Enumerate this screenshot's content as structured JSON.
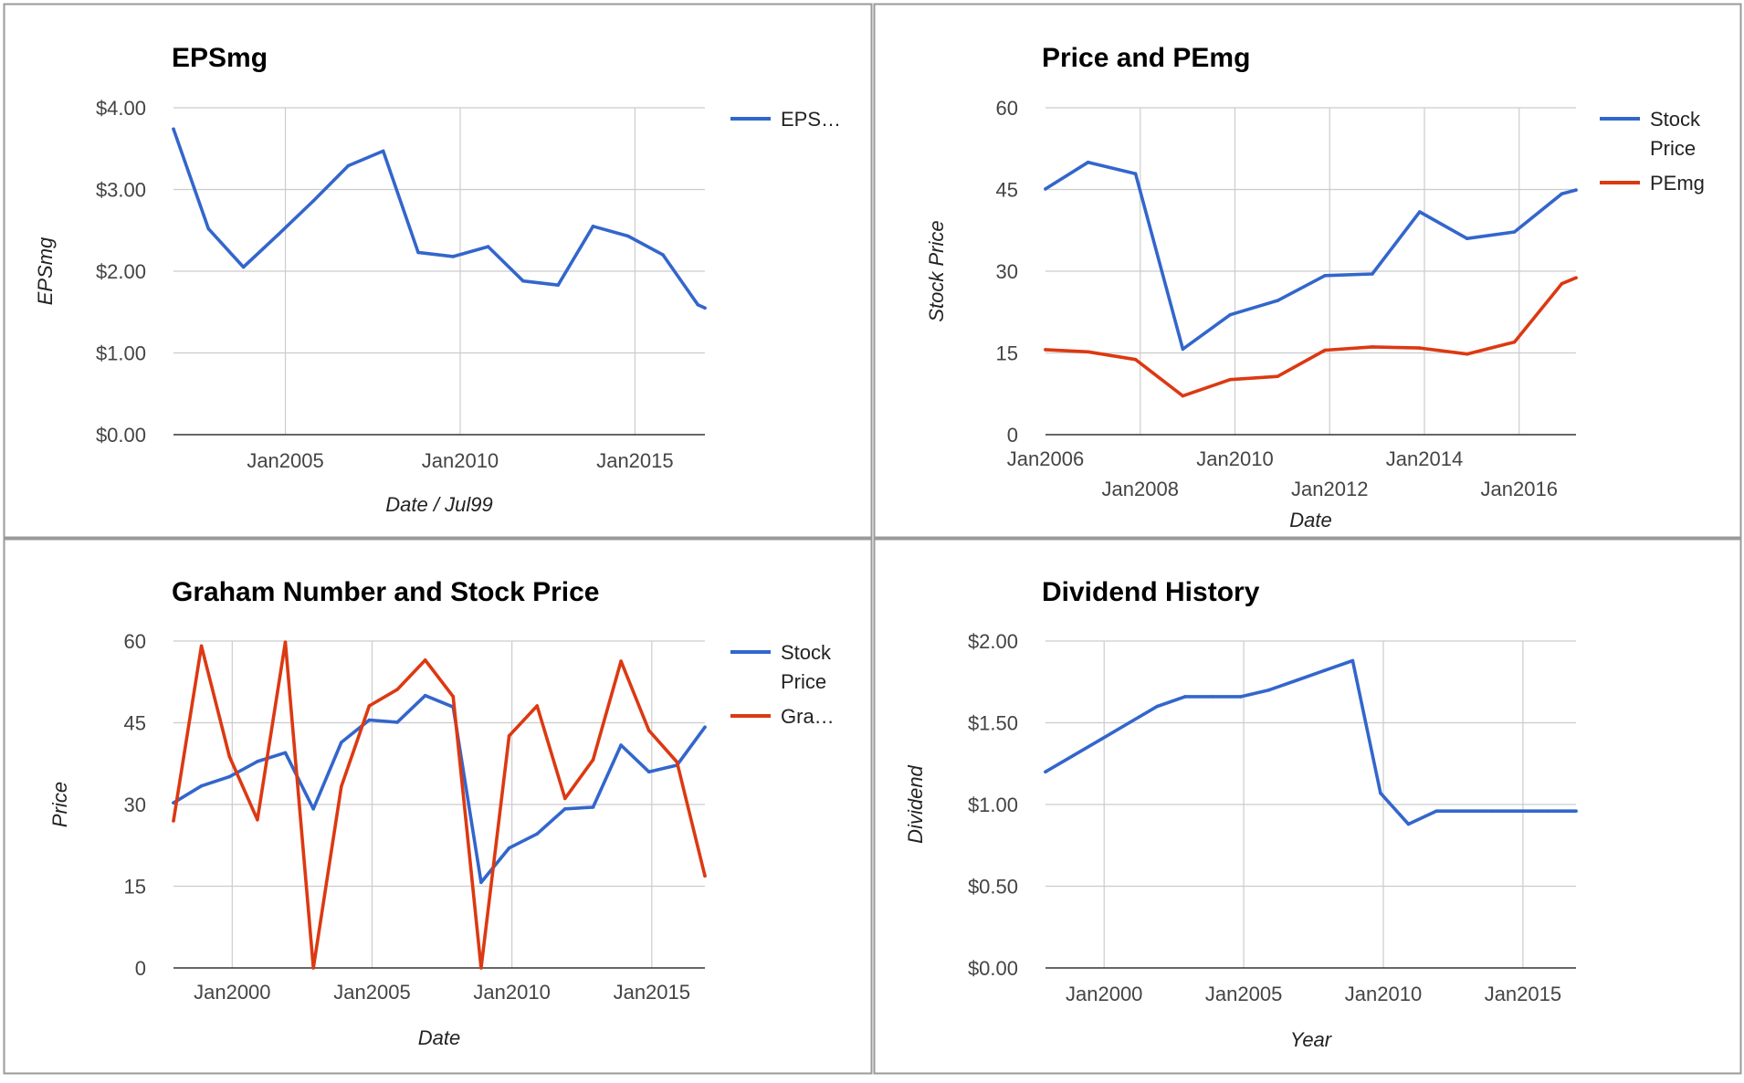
{
  "chart_data": [
    {
      "type": "line",
      "title": "EPSmg",
      "xlabel": "Date / Jul99",
      "ylabel": "EPSmg",
      "ylim": [
        0,
        4
      ],
      "y_ticks": [
        "$0.00",
        "$1.00",
        "$2.00",
        "$3.00",
        "$4.00"
      ],
      "x_ticks": [
        {
          "label": "Jan2005",
          "x": 2005.0
        },
        {
          "label": "Jan2010",
          "x": 2010.0
        },
        {
          "label": "Jan2015",
          "x": 2015.0
        }
      ],
      "xlim": [
        2001.8,
        2017.0
      ],
      "grid": true,
      "legend": "right",
      "series": [
        {
          "name": "EPS…",
          "color": "#3366cc",
          "x": [
            2001.8,
            2002.8,
            2003.8,
            2004.8,
            2005.8,
            2006.8,
            2007.8,
            2008.8,
            2009.8,
            2010.8,
            2011.8,
            2012.8,
            2013.8,
            2014.8,
            2015.8,
            2016.8,
            2017.0
          ],
          "y": [
            3.74,
            2.52,
            2.05,
            2.45,
            2.86,
            3.29,
            3.47,
            2.23,
            2.18,
            2.3,
            1.88,
            1.83,
            2.55,
            2.43,
            2.2,
            1.59,
            1.55
          ]
        }
      ]
    },
    {
      "type": "line",
      "title": "Price and PEmg",
      "xlabel": "Date",
      "ylabel": "Stock Price",
      "ylim": [
        0,
        60
      ],
      "y_ticks": [
        "0",
        "15",
        "30",
        "45",
        "60"
      ],
      "x_ticks": [
        {
          "label": "Jan2006",
          "x": 2006.0
        },
        {
          "label": "Jan2008",
          "x": 2008.0
        },
        {
          "label": "Jan2010",
          "x": 2010.0
        },
        {
          "label": "Jan2012",
          "x": 2012.0
        },
        {
          "label": "Jan2014",
          "x": 2014.0
        },
        {
          "label": "Jan2016",
          "x": 2016.0
        }
      ],
      "xlim": [
        2006.0,
        2017.2
      ],
      "grid": true,
      "legend": "right",
      "series": [
        {
          "name": "Stock Price",
          "color": "#3366cc",
          "x": [
            2006.0,
            2006.9,
            2007.9,
            2008.9,
            2009.9,
            2010.9,
            2011.9,
            2012.9,
            2013.9,
            2014.9,
            2015.9,
            2016.9,
            2017.2
          ],
          "y": [
            45.1,
            50.0,
            47.9,
            15.7,
            22.0,
            24.6,
            29.2,
            29.5,
            40.9,
            36.0,
            37.2,
            44.2,
            44.9
          ]
        },
        {
          "name": "PEmg",
          "color": "#dc3912",
          "x": [
            2006.0,
            2006.9,
            2007.9,
            2008.9,
            2009.9,
            2010.9,
            2011.9,
            2012.9,
            2013.9,
            2014.9,
            2015.9,
            2016.9,
            2017.2
          ],
          "y": [
            15.6,
            15.2,
            13.8,
            7.1,
            10.1,
            10.7,
            15.5,
            16.1,
            15.9,
            14.8,
            17.0,
            27.7,
            28.8
          ]
        }
      ]
    },
    {
      "type": "line",
      "title": "Graham Number and Stock Price",
      "xlabel": "Date",
      "ylabel": "Price",
      "ylim": [
        0,
        60
      ],
      "y_ticks": [
        "0",
        "15",
        "30",
        "45",
        "60"
      ],
      "x_ticks": [
        {
          "label": "Jan2000",
          "x": 2000.0
        },
        {
          "label": "Jan2005",
          "x": 2005.0
        },
        {
          "label": "Jan2010",
          "x": 2010.0
        },
        {
          "label": "Jan2015",
          "x": 2015.0
        }
      ],
      "xlim": [
        1997.9,
        2016.9
      ],
      "grid": true,
      "legend": "right",
      "series": [
        {
          "name": "Stock Price",
          "color": "#3366cc",
          "x": [
            1997.9,
            1998.9,
            1999.9,
            2000.9,
            2001.9,
            2002.9,
            2003.9,
            2004.9,
            2005.9,
            2006.9,
            2007.9,
            2008.9,
            2009.9,
            2010.9,
            2011.9,
            2012.9,
            2013.9,
            2014.9,
            2015.9,
            2016.9
          ],
          "y": [
            30.3,
            33.4,
            35.1,
            37.9,
            39.5,
            29.2,
            41.4,
            45.5,
            45.1,
            50.0,
            47.9,
            15.7,
            22.0,
            24.6,
            29.2,
            29.5,
            40.9,
            36.0,
            37.2,
            44.2
          ]
        },
        {
          "name": "Gra…",
          "color": "#dc3912",
          "x": [
            1997.9,
            1998.9,
            1999.9,
            2000.9,
            2001.9,
            2002.9,
            2003.9,
            2004.9,
            2005.9,
            2006.9,
            2007.9,
            2008.9,
            2009.9,
            2010.9,
            2011.9,
            2012.9,
            2013.9,
            2014.9,
            2015.9,
            2016.9
          ],
          "y": [
            27.0,
            59.1,
            38.8,
            27.2,
            59.8,
            0.0,
            33.3,
            48.1,
            51.1,
            56.5,
            49.8,
            0.0,
            42.6,
            48.1,
            31.1,
            38.2,
            56.3,
            43.6,
            37.8,
            16.9
          ]
        }
      ]
    },
    {
      "type": "line",
      "title": "Dividend History",
      "xlabel": "Year",
      "ylabel": "Dividend",
      "ylim": [
        0,
        2
      ],
      "y_ticks": [
        "$0.00",
        "$0.50",
        "$1.00",
        "$1.50",
        "$2.00"
      ],
      "x_ticks": [
        {
          "label": "Jan2000",
          "x": 2000.0
        },
        {
          "label": "Jan2005",
          "x": 2005.0
        },
        {
          "label": "Jan2010",
          "x": 2010.0
        },
        {
          "label": "Jan2015",
          "x": 2015.0
        }
      ],
      "xlim": [
        1997.9,
        2016.9
      ],
      "grid": true,
      "series": [
        {
          "name": "Dividend",
          "color": "#3366cc",
          "x": [
            1997.9,
            1998.9,
            1999.9,
            2000.9,
            2001.9,
            2002.9,
            2003.9,
            2004.9,
            2005.9,
            2006.9,
            2007.9,
            2008.9,
            2009.9,
            2010.9,
            2011.9,
            2012.9,
            2013.9,
            2014.9,
            2015.9,
            2016.9
          ],
          "y": [
            1.2,
            1.3,
            1.4,
            1.5,
            1.6,
            1.66,
            1.66,
            1.66,
            1.7,
            1.76,
            1.82,
            1.88,
            1.07,
            0.88,
            0.96,
            0.96,
            0.96,
            0.96,
            0.96,
            0.96
          ]
        }
      ]
    }
  ]
}
